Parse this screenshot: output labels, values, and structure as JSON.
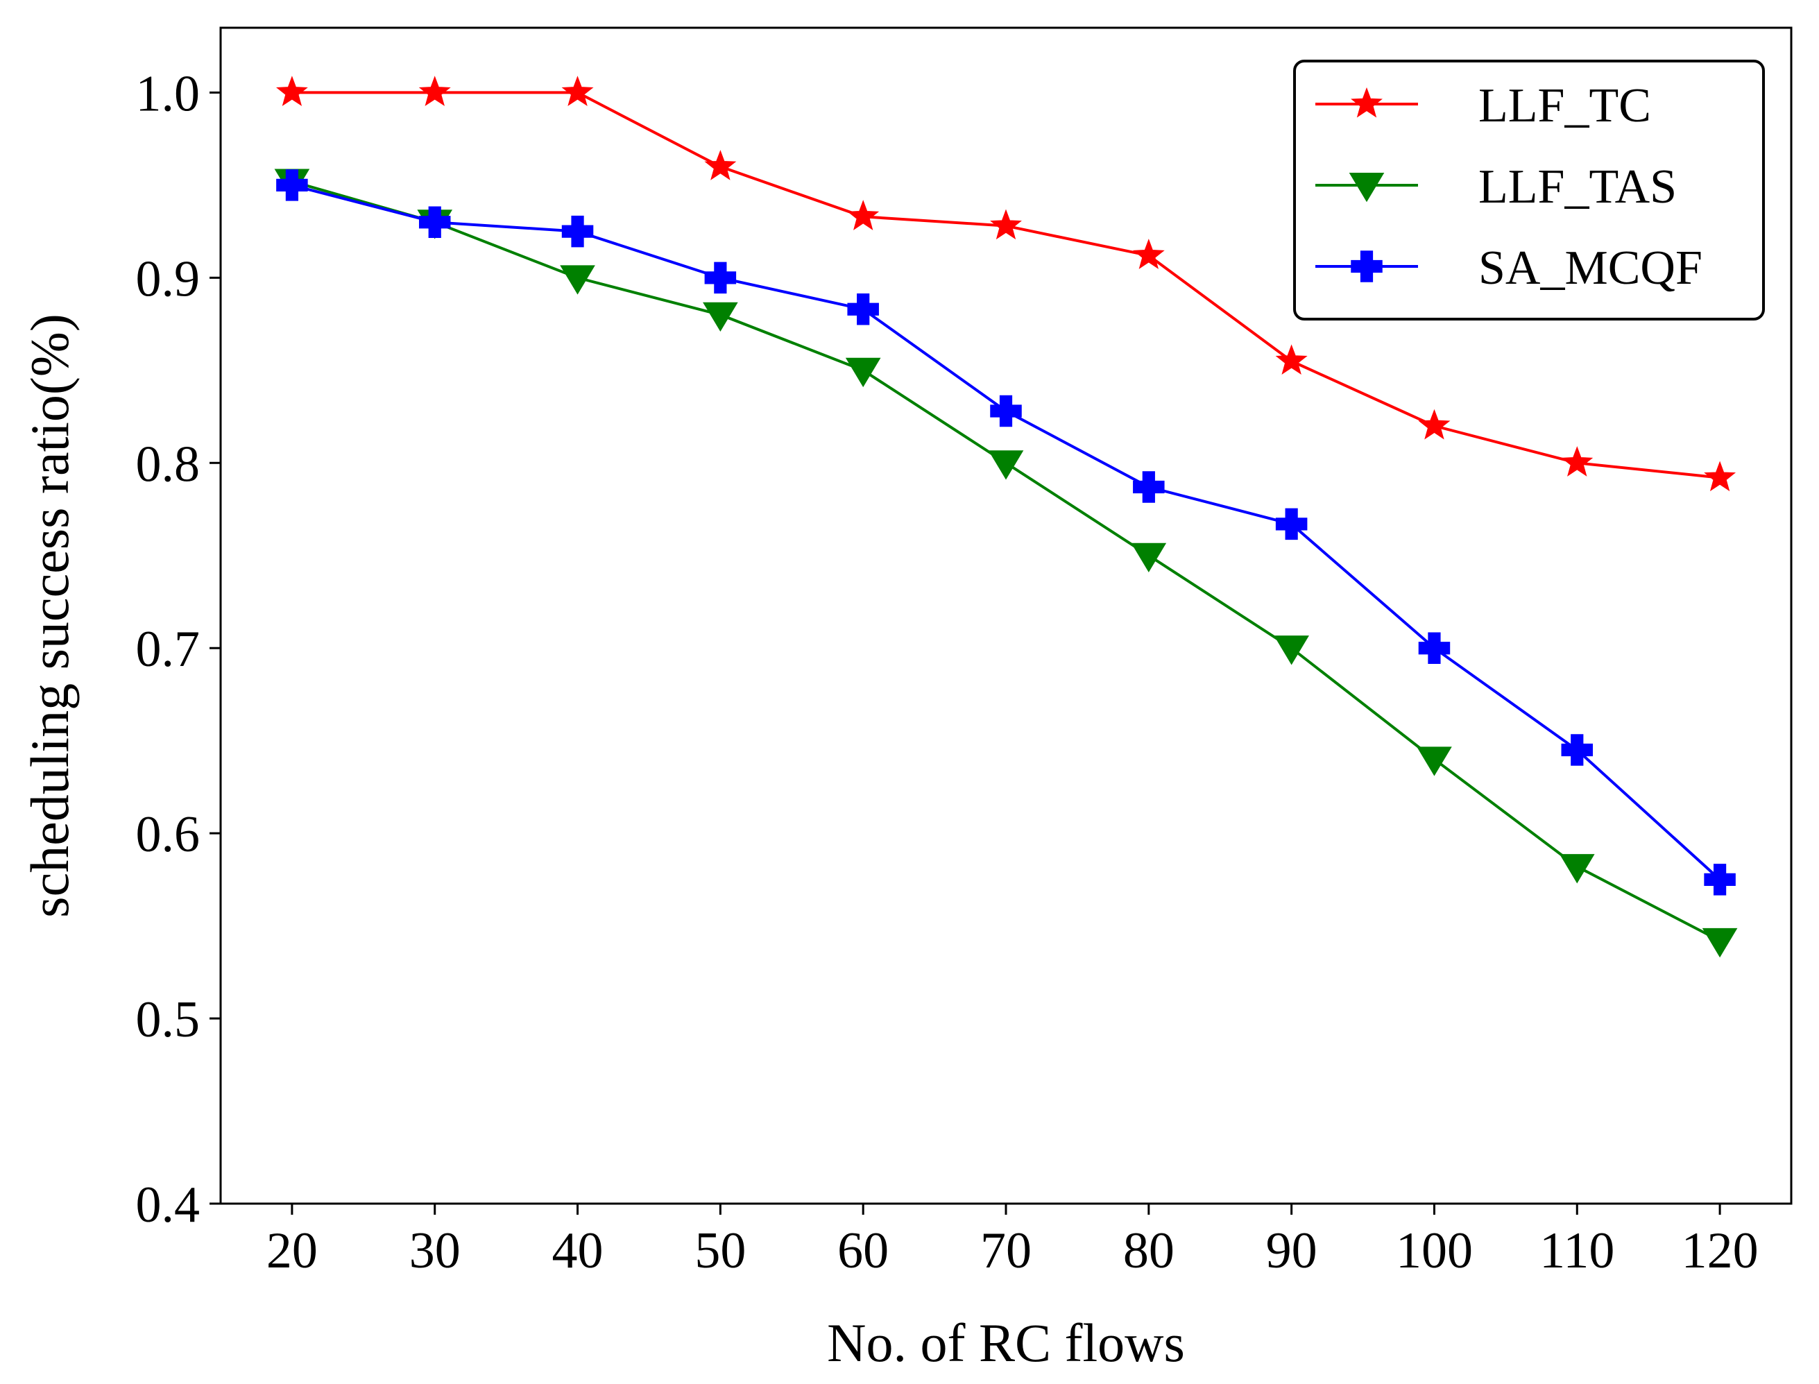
{
  "chart_data": {
    "type": "line",
    "title": "",
    "xlabel": "No. of RC flows",
    "ylabel": "scheduling success ratio(%)",
    "x": [
      20,
      30,
      40,
      50,
      60,
      70,
      80,
      90,
      100,
      110,
      120
    ],
    "xticks": [
      "20",
      "30",
      "40",
      "50",
      "60",
      "70",
      "80",
      "90",
      "100",
      "110",
      "120"
    ],
    "xlim": [
      15,
      125
    ],
    "yticks": [
      "0.4",
      "0.5",
      "0.6",
      "0.7",
      "0.8",
      "0.9",
      "1.0"
    ],
    "ylim": [
      0.4,
      1.035
    ],
    "grid": false,
    "legend_position": "top-right",
    "series": [
      {
        "name": "LLF_TC",
        "color": "#ff0000",
        "marker": "star",
        "values": [
          1.0,
          1.0,
          1.0,
          0.96,
          0.933,
          0.928,
          0.912,
          0.855,
          0.82,
          0.8,
          0.792
        ]
      },
      {
        "name": "LLF_TAS",
        "color": "#008000",
        "marker": "triangle-down",
        "values": [
          0.952,
          0.93,
          0.9,
          0.88,
          0.85,
          0.8,
          0.75,
          0.7,
          0.64,
          0.582,
          0.542
        ]
      },
      {
        "name": "SA_MCQF",
        "color": "#0000ff",
        "marker": "plus",
        "values": [
          0.95,
          0.93,
          0.925,
          0.9,
          0.883,
          0.828,
          0.787,
          0.767,
          0.7,
          0.645,
          0.575
        ]
      }
    ]
  }
}
